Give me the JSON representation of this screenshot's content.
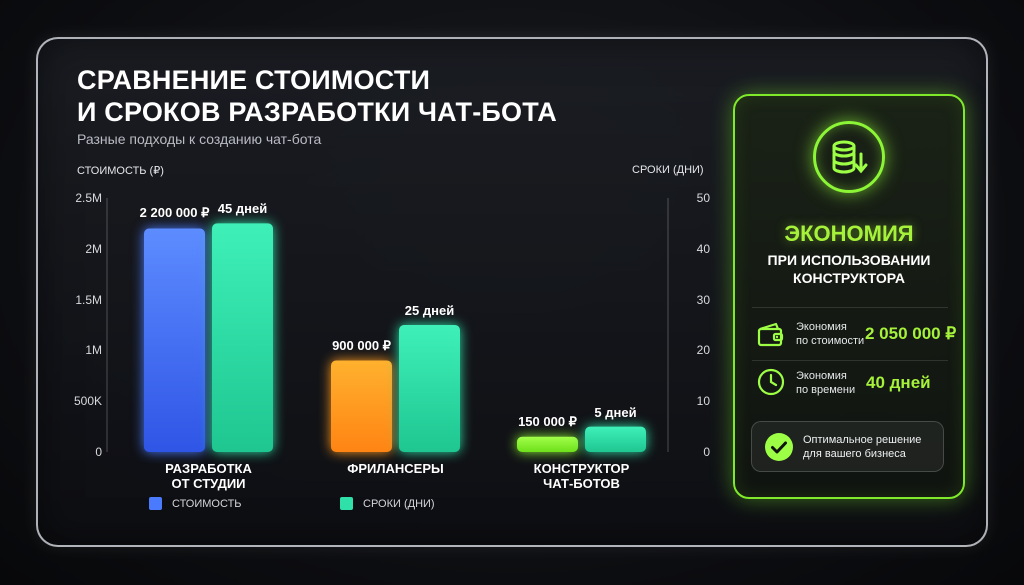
{
  "title_line1": "СРАВНЕНИЕ СТОИМОСТИ",
  "title_line2": "И СРОКОВ РАЗРАБОТКИ ЧАТ-БОТА",
  "subtitle": "Разные подходы к созданию чат-бота",
  "chart_data": {
    "type": "bar",
    "categories": [
      "РАЗРАБОТКА\nОТ СТУДИИ",
      "ФРИЛАНСЕРЫ",
      "КОНСТРУКТОР\nЧАТ-БОТОВ"
    ],
    "category_lines": [
      [
        "РАЗРАБОТКА",
        "ОТ СТУДИИ"
      ],
      [
        "ФРИЛАНСЕРЫ"
      ],
      [
        "КОНСТРУКТОР",
        "ЧАТ-БОТОВ"
      ]
    ],
    "series": [
      {
        "name": "СТОИМОСТЬ",
        "axis": "left",
        "values": [
          2200000,
          900000,
          150000
        ],
        "labels": [
          "2 200 000 ₽",
          "900 000 ₽",
          "150 000 ₽"
        ]
      },
      {
        "name": "СРОКИ (ДНИ)",
        "axis": "right",
        "values": [
          45,
          25,
          5
        ],
        "labels": [
          "45 дней",
          "25 дней",
          "5 дней"
        ]
      }
    ],
    "ylabel_left": "СТОИМОСТЬ (₽)",
    "ylabel_right": "СРОКИ (ДНИ)",
    "ylim_left": [
      0,
      2500000
    ],
    "ylim_right": [
      0,
      50
    ],
    "ticks_left": [
      {
        "value": 2500000,
        "label": "2.5M"
      },
      {
        "value": 2000000,
        "label": "2M"
      },
      {
        "value": 1500000,
        "label": "1.5M"
      },
      {
        "value": 1000000,
        "label": "1M"
      },
      {
        "value": 500000,
        "label": "500K"
      },
      {
        "value": 0,
        "label": "0"
      }
    ],
    "ticks_right": [
      {
        "value": 50,
        "label": "50"
      },
      {
        "value": 40,
        "label": "40"
      },
      {
        "value": 30,
        "label": "30"
      },
      {
        "value": 20,
        "label": "20"
      },
      {
        "value": 10,
        "label": "10"
      },
      {
        "value": 0,
        "label": "0"
      }
    ],
    "colors": {
      "cost": [
        "#4a7bff",
        "#ff9a1f",
        "#8cf536"
      ],
      "time": "#2fe0a8"
    },
    "legend": [
      {
        "name": "СТОИМОСТЬ",
        "color": "#4a7bff"
      },
      {
        "name": "СРОКИ (ДНИ)",
        "color": "#2fe0a8"
      }
    ],
    "legend_position": "bottom-left",
    "grid": false
  },
  "panel": {
    "heading": "ЭКОНОМИЯ",
    "sub_line1": "ПРИ ИСПОЛЬЗОВАНИИ",
    "sub_line2": "КОНСТРУКТОРА",
    "cost_label_1": "Экономия",
    "cost_label_2": "по стоимости",
    "cost_value": "2 050 000 ₽",
    "time_label_1": "Экономия",
    "time_label_2": "по времени",
    "time_value": "40 дней",
    "badge_line1": "Оптимальное решение",
    "badge_line2": "для вашего бизнеса",
    "accent": "#a6f23a",
    "icons": [
      "coin-stack-icon",
      "wallet-icon",
      "clock-icon",
      "check-circle-icon"
    ]
  }
}
